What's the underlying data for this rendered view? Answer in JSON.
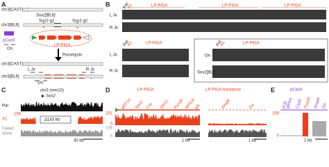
{
  "A": {
    "label": "A",
    "top_cast": "chr3[CAST]",
    "top_bl6": "chr3[BL6]",
    "sox2": "Sox2[BL6]",
    "g1": "Sox2-g1",
    "g2": "Sox2-g2",
    "pcas9": "pCas9",
    "on_top": "On",
    "donor": "LP-PIGA",
    "puro": "Puromycin",
    "bottom_cast": "chr3[CAST]",
    "bottom_bl6": "chr3[BL6]",
    "l_jx": "L Jx",
    "r_jx": "R Jx",
    "on_bottom": "On"
  },
  "B": {
    "label": "B",
    "top": {
      "par": "Par",
      "a1": "A1",
      "groups": [
        "LP-PIGA",
        "LP-PIGA",
        "LP-PIGA"
      ],
      "rows": [
        "L Jx",
        "R Jx"
      ]
    },
    "left": {
      "par": "Par",
      "a1": "A1",
      "group": "LP-PIGA",
      "rows": [
        "L Jx",
        "R Jx"
      ]
    },
    "right": {
      "par": "Par",
      "a1": "A1",
      "group": "LP-PIGA",
      "rows": [
        "On",
        "Sox2[BL6]"
      ]
    }
  },
  "C": {
    "label": "C",
    "locus": "chr3 (mm10)",
    "gene": "Sox2",
    "tracks": [
      "Par",
      "A1"
    ],
    "failed": [
      "Failed",
      "clone"
    ],
    "scale_max": 159,
    "deletion": "Δ143 kb",
    "scale_bar": "30 kb"
  },
  "D": {
    "label": "D",
    "title": "LP-PIGA",
    "backbone": "LP-PIGA backbone",
    "features": [
      "pEF1α",
      "Sox2",
      "Cre",
      "ERT2",
      "PuroR",
      "hPIGA",
      "pA"
    ],
    "backbone_features": [
      "AmpR",
      "Ori"
    ],
    "a1_axis": [
      291,
      0
    ],
    "clone_axis": [
      159,
      0
    ],
    "scale_bars": [
      "1 kb",
      "1 kb"
    ]
  },
  "E": {
    "label": "E",
    "title": "pCas9",
    "features": [
      "pU6",
      "gRNA",
      "Cas9",
      "PuroR",
      "AmpR",
      "Ori"
    ],
    "axis": [
      159,
      0
    ],
    "scale_bar": "1 kb"
  }
}
